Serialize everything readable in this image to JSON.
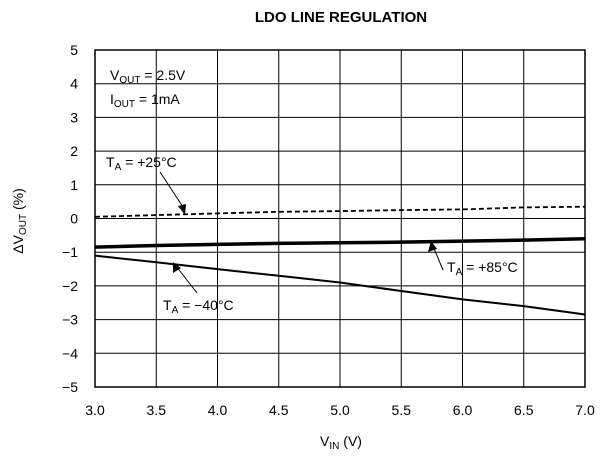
{
  "chart_data": {
    "type": "line",
    "title": "LDO LINE REGULATION",
    "xlabel": {
      "main": "V",
      "sub": "IN",
      "unit": "(V)"
    },
    "ylabel": {
      "main": "ΔV",
      "sub": "OUT",
      "unit": "(%)"
    },
    "xlim": [
      3.0,
      7.0
    ],
    "ylim": [
      -5,
      5
    ],
    "x_ticks": [
      "3.0",
      "3.5",
      "4.0",
      "4.5",
      "5.0",
      "5.5",
      "6.0",
      "6.5",
      "7.0"
    ],
    "y_ticks": [
      "5",
      "4",
      "3",
      "2",
      "1",
      "0",
      "−1",
      "−2",
      "−3",
      "−4",
      "−5"
    ],
    "grid": true,
    "conditions": [
      {
        "main": "V",
        "sub": "OUT",
        "text": " = 2.5V"
      },
      {
        "main": "I",
        "sub": "OUT",
        "text": " = 1mA"
      }
    ],
    "series": [
      {
        "name": "T_A = +25°C",
        "label": {
          "main": "T",
          "sub": "A",
          "text": " = +25°C"
        },
        "style": "dashed",
        "x": [
          3.0,
          3.5,
          4.0,
          4.5,
          5.0,
          5.5,
          6.0,
          6.5,
          7.0
        ],
        "y": [
          0.05,
          0.1,
          0.15,
          0.2,
          0.22,
          0.25,
          0.27,
          0.33,
          0.35
        ]
      },
      {
        "name": "T_A = +85°C",
        "label": {
          "main": "T",
          "sub": "A",
          "text": " = +85°C"
        },
        "style": "solid-bold",
        "x": [
          3.0,
          3.5,
          4.0,
          4.5,
          5.0,
          5.5,
          6.0,
          6.5,
          7.0
        ],
        "y": [
          -0.85,
          -0.8,
          -0.77,
          -0.74,
          -0.72,
          -0.7,
          -0.67,
          -0.64,
          -0.6
        ]
      },
      {
        "name": "T_A = −40°C",
        "label": {
          "main": "T",
          "sub": "A",
          "text": " = −40°C"
        },
        "style": "solid",
        "x": [
          3.0,
          3.5,
          4.0,
          4.5,
          5.0,
          5.5,
          6.0,
          6.5,
          7.0
        ],
        "y": [
          -1.1,
          -1.3,
          -1.5,
          -1.7,
          -1.9,
          -2.15,
          -2.4,
          -2.6,
          -2.85
        ]
      }
    ]
  }
}
